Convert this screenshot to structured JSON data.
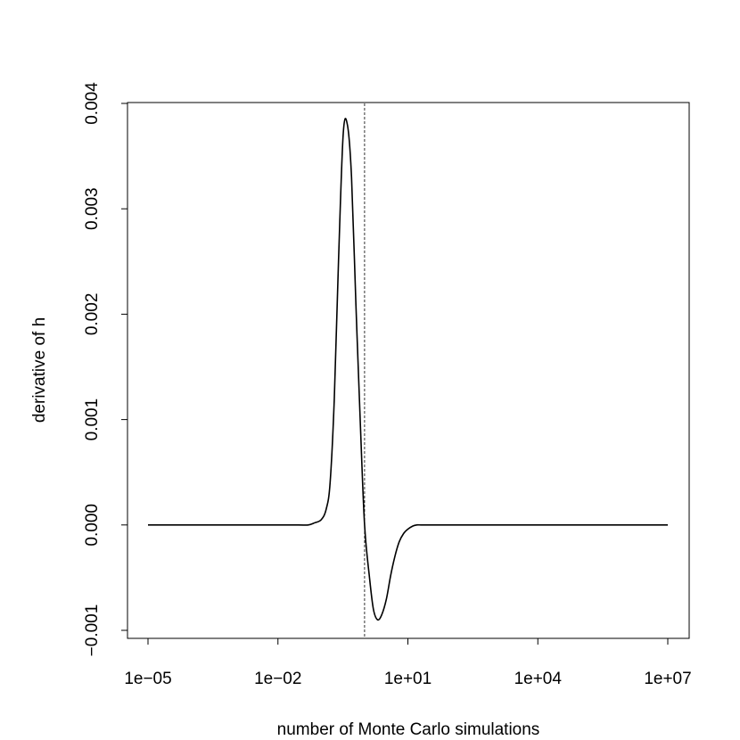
{
  "chart_data": {
    "type": "line",
    "title": "",
    "xlabel": "number of Monte Carlo simulations",
    "ylabel": "derivative of h",
    "x_scale": "log10",
    "xlim": [
      1e-05,
      10000000.0
    ],
    "ylim": [
      -0.001,
      0.004
    ],
    "x_ticks": [
      1e-05,
      0.01,
      10.0,
      10000.0,
      10000000.0
    ],
    "x_tick_labels": [
      "1e−05",
      "1e−02",
      "1e+01",
      "1e+04",
      "1e+07"
    ],
    "y_ticks": [
      -0.001,
      0.0,
      0.001,
      0.002,
      0.003,
      0.004
    ],
    "y_tick_labels": [
      "−0.001",
      "0.000",
      "0.001",
      "0.002",
      "0.003",
      "0.004"
    ],
    "grid": false,
    "legend": "none",
    "vline": {
      "x": 1.0,
      "style": "dotted"
    },
    "series": [
      {
        "color": "#000000",
        "x": [
          1e-05,
          0.001,
          0.01,
          0.03,
          0.05,
          0.07,
          0.1,
          0.13,
          0.16,
          0.2,
          0.25,
          0.32,
          0.4,
          0.5,
          0.63,
          0.8,
          1.0,
          1.3,
          1.6,
          2.0,
          2.5,
          3.2,
          4.0,
          5.0,
          6.3,
          8.0,
          10.0,
          13.0,
          16.0,
          20.0,
          30.0,
          50.0,
          100.0,
          10000.0,
          10000000.0
        ],
        "y": [
          0.0,
          0.0,
          0.0,
          0.0,
          0.0,
          2e-05,
          5e-05,
          0.00015,
          0.0004,
          0.0012,
          0.0025,
          0.0037,
          0.0038,
          0.0033,
          0.0021,
          0.00095,
          0.0,
          -0.0005,
          -0.0008,
          -0.0009,
          -0.00085,
          -0.0007,
          -0.00048,
          -0.0003,
          -0.00016,
          -8e-05,
          -4e-05,
          -1e-05,
          0.0,
          0.0,
          0.0,
          0.0,
          0.0,
          0.0,
          0.0
        ]
      }
    ]
  }
}
